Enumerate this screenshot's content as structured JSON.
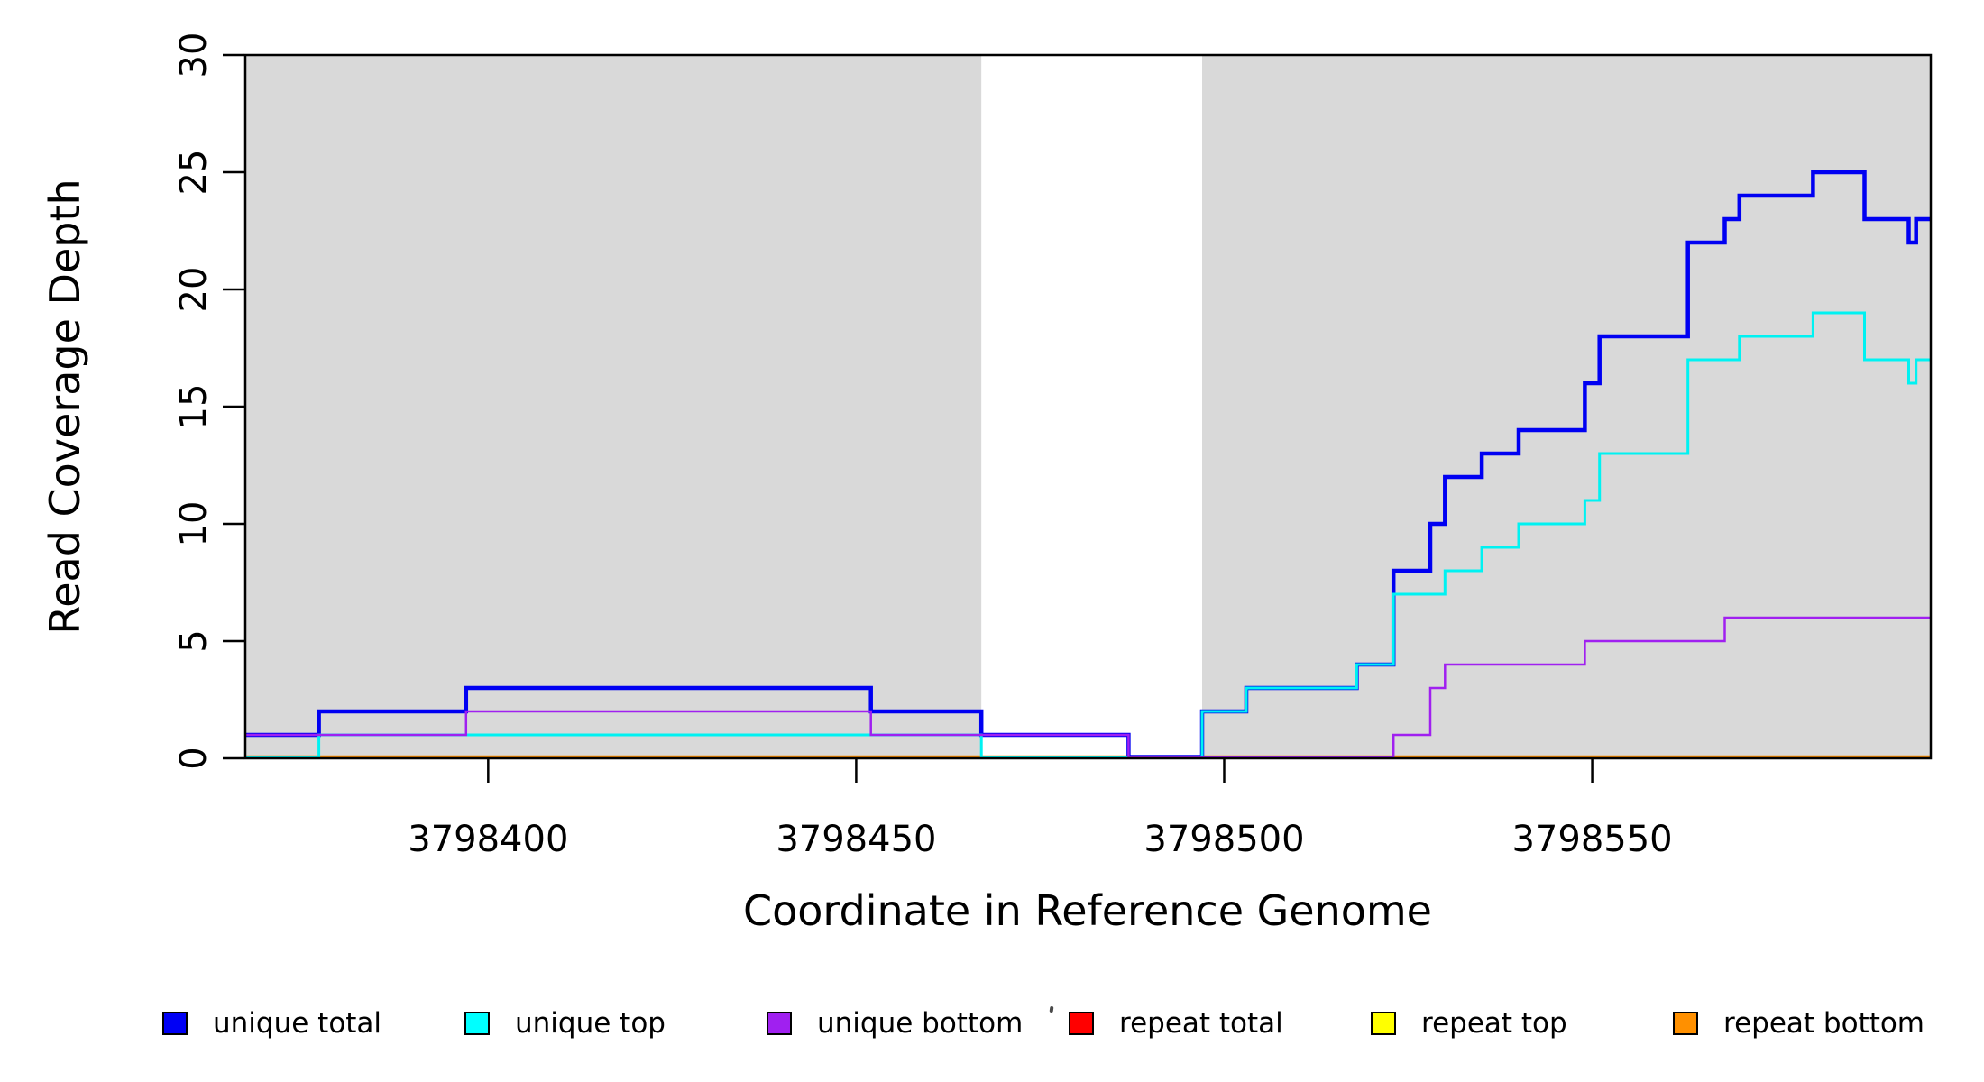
{
  "chart_data": {
    "type": "step-line",
    "title": "",
    "xlabel": "Coordinate in Reference Genome",
    "ylabel": "Read Coverage Depth",
    "xlim": [
      3798367,
      3798596
    ],
    "ylim": [
      0,
      30
    ],
    "xticks": [
      3798400,
      3798450,
      3798500,
      3798550
    ],
    "yticks": [
      0,
      5,
      10,
      15,
      20,
      25,
      30
    ],
    "grid": false,
    "legend_position": "bottom",
    "panel_background": "#ffffff",
    "shaded_region_color": "#d9d9d9",
    "shaded_regions": [
      {
        "name": "unique-region-left",
        "x0": 3798367,
        "x1": 3798467
      },
      {
        "name": "unique-region-right",
        "x0": 3798497,
        "x1": 3798596
      }
    ],
    "series": [
      {
        "name": "repeat total",
        "color": "#ff0000",
        "lwd": 2.5,
        "points": [
          [
            3798367,
            0
          ]
        ]
      },
      {
        "name": "repeat top",
        "color": "#ffff00",
        "lwd": 2.5,
        "points": [
          [
            3798367,
            0
          ]
        ]
      },
      {
        "name": "repeat bottom",
        "color": "#ff8f00",
        "lwd": 3.5,
        "points": [
          [
            3798367,
            0
          ]
        ]
      },
      {
        "name": "unique total",
        "color": "#0000f2",
        "lwd": 4.5,
        "points": [
          [
            3798367,
            1
          ],
          [
            3798377,
            2
          ],
          [
            3798397,
            3
          ],
          [
            3798452,
            2
          ],
          [
            3798467,
            1
          ],
          [
            3798487,
            0
          ],
          [
            3798497,
            2
          ],
          [
            3798503,
            3
          ],
          [
            3798518,
            4
          ],
          [
            3798523,
            8
          ],
          [
            3798528,
            10
          ],
          [
            3798530,
            12
          ],
          [
            3798535,
            13
          ],
          [
            3798540,
            14
          ],
          [
            3798549,
            16
          ],
          [
            3798551,
            18
          ],
          [
            3798563,
            22
          ],
          [
            3798568,
            23
          ],
          [
            3798570,
            24
          ],
          [
            3798580,
            25
          ],
          [
            3798587,
            23
          ],
          [
            3798593,
            22
          ],
          [
            3798594,
            23
          ]
        ]
      },
      {
        "name": "unique top",
        "color": "#00f2f2",
        "lwd": 3,
        "points": [
          [
            3798367,
            0
          ],
          [
            3798377,
            1
          ],
          [
            3798467,
            0
          ],
          [
            3798497,
            2
          ],
          [
            3798503,
            3
          ],
          [
            3798518,
            4
          ],
          [
            3798523,
            7
          ],
          [
            3798530,
            8
          ],
          [
            3798535,
            9
          ],
          [
            3798540,
            10
          ],
          [
            3798549,
            11
          ],
          [
            3798551,
            13
          ],
          [
            3798563,
            17
          ],
          [
            3798570,
            18
          ],
          [
            3798580,
            19
          ],
          [
            3798587,
            17
          ],
          [
            3798593,
            16
          ],
          [
            3798594,
            17
          ]
        ]
      },
      {
        "name": "unique bottom",
        "color": "#a020f0",
        "lwd": 2.5,
        "points": [
          [
            3798367,
            1
          ],
          [
            3798397,
            2
          ],
          [
            3798452,
            1
          ],
          [
            3798487,
            0
          ],
          [
            3798523,
            1
          ],
          [
            3798528,
            3
          ],
          [
            3798530,
            4
          ],
          [
            3798549,
            5
          ],
          [
            3798568,
            6
          ]
        ]
      }
    ],
    "legend": [
      {
        "label": "unique total",
        "color": "#0000f5"
      },
      {
        "label": "unique top",
        "color": "#00ffff"
      },
      {
        "label": "unique bottom",
        "color": "#a020f0"
      },
      {
        "label": "repeat total",
        "color": "#ff0000"
      },
      {
        "label": "repeat top",
        "color": "#ffff00"
      },
      {
        "label": "repeat bottom",
        "color": "#ff9000"
      }
    ]
  }
}
